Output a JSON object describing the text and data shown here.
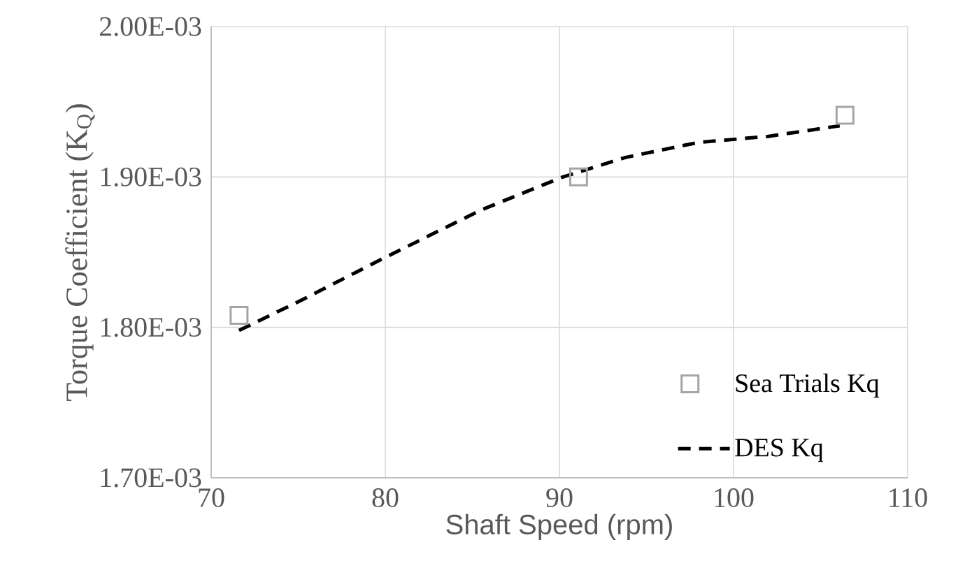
{
  "chart_data": {
    "type": "line",
    "xlabel": "Shaft Speed (rpm)",
    "ylabel": "Torque Coefficient (K$_{Q}$)",
    "xlim": [
      70,
      110
    ],
    "xticks": [
      70,
      80,
      90,
      100,
      110
    ],
    "ylim": [
      0.0017,
      0.002
    ],
    "yticks": [
      {
        "value": 0.0017,
        "label": "1.70E-03"
      },
      {
        "value": 0.0018,
        "label": "1.80E-03"
      },
      {
        "value": 0.0019,
        "label": "1.90E-03"
      },
      {
        "value": 0.002,
        "label": "2.00E-03"
      }
    ],
    "grid": true,
    "legend": "bottom right",
    "series": [
      {
        "name": "Sea Trials Kq",
        "type": "scatter",
        "marker": "square",
        "color": "#a5a5a5",
        "x": [
          71.6,
          91.1,
          106.4
        ],
        "values": [
          0.001808,
          0.0019,
          0.001941
        ]
      },
      {
        "name": "DES Kq",
        "line_style": "dashed",
        "marker": "none",
        "color": "#000000",
        "x": [
          71.6,
          75.0,
          79.9,
          85.5,
          90.2,
          93.8,
          98.0,
          102.0,
          106.1
        ],
        "values": [
          0.001798,
          0.001817,
          0.001846,
          0.001878,
          0.0019,
          0.001913,
          0.001923,
          0.001927,
          0.001934
        ]
      }
    ]
  }
}
